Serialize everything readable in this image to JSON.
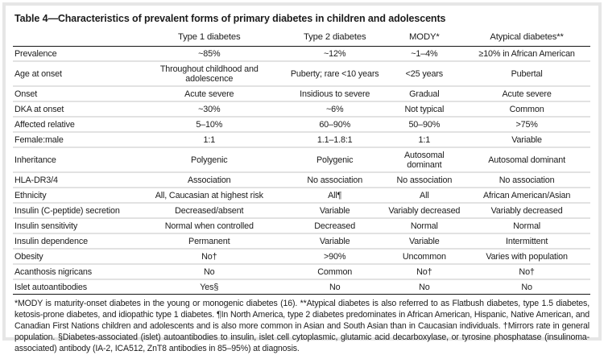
{
  "colors": {
    "background": "#ffffff",
    "frame_border": "#e6e6e6",
    "rule_dark": "#161616",
    "rule_light": "#e2e2e2",
    "text": "#1c1c1c"
  },
  "table": {
    "title": "Table 4—Characteristics of prevalent forms of primary diabetes in children and adolescents",
    "columns": [
      "",
      "Type 1 diabetes",
      "Type 2 diabetes",
      "MODY*",
      "Atypical diabetes**"
    ],
    "rows": [
      {
        "label": "Prevalence",
        "values": [
          "~85%",
          "~12%",
          "~1–4%",
          "≥10% in African American"
        ]
      },
      {
        "label": "Age at onset",
        "values": [
          "Throughout childhood and adolescence",
          "Puberty; rare <10 years",
          "<25 years",
          "Pubertal"
        ]
      },
      {
        "label": "Onset",
        "values": [
          "Acute severe",
          "Insidious to severe",
          "Gradual",
          "Acute severe"
        ]
      },
      {
        "label": "DKA at onset",
        "values": [
          "~30%",
          "~6%",
          "Not typical",
          "Common"
        ]
      },
      {
        "label": "Affected relative",
        "values": [
          "5–10%",
          "60–90%",
          "50–90%",
          ">75%"
        ]
      },
      {
        "label": "Female:male",
        "values": [
          "1:1",
          "1.1–1.8:1",
          "1:1",
          "Variable"
        ]
      },
      {
        "label": "Inheritance",
        "values": [
          "Polygenic",
          "Polygenic",
          "Autosomal\ndominant",
          "Autosomal dominant"
        ]
      },
      {
        "label": "HLA-DR3/4",
        "values": [
          "Association",
          "No association",
          "No association",
          "No association"
        ]
      },
      {
        "label": "Ethnicity",
        "values": [
          "All, Caucasian at highest risk",
          "All¶",
          "All",
          "African American/Asian"
        ]
      },
      {
        "label": "Insulin (C-peptide) secretion",
        "values": [
          "Decreased/absent",
          "Variable",
          "Variably decreased",
          "Variably decreased"
        ]
      },
      {
        "label": "Insulin sensitivity",
        "values": [
          "Normal when controlled",
          "Decreased",
          "Normal",
          "Normal"
        ]
      },
      {
        "label": "Insulin dependence",
        "values": [
          "Permanent",
          "Variable",
          "Variable",
          "Intermittent"
        ]
      },
      {
        "label": "Obesity",
        "values": [
          "No†",
          ">90%",
          "Uncommon",
          "Varies with population"
        ]
      },
      {
        "label": "Acanthosis nigricans",
        "values": [
          "No",
          "Common",
          "No†",
          "No†"
        ]
      },
      {
        "label": "Islet autoantibodies",
        "values": [
          "Yes§",
          "No",
          "No",
          "No"
        ]
      }
    ],
    "footnote": "*MODY is maturity-onset diabetes in the young or monogenic diabetes (16). **Atypical diabetes is also referred to as Flatbush diabetes, type 1.5 diabetes, ketosis-prone diabetes, and idiopathic type 1 diabetes. ¶In North America, type 2 diabetes predominates in African American, Hispanic, Native American, and Canadian First Nations children and adolescents and is also more common in Asian and South Asian than in Caucasian individuals. †Mirrors rate in general population. §Diabetes-associated (islet) autoantibodies to insulin, islet cell cytoplasmic, glutamic acid decarboxylase, or tyrosine phosphatase (insulinoma-associated) antibody (IA-2, ICA512, ZnT8 antibodies in 85–95%) at diagnosis."
  }
}
